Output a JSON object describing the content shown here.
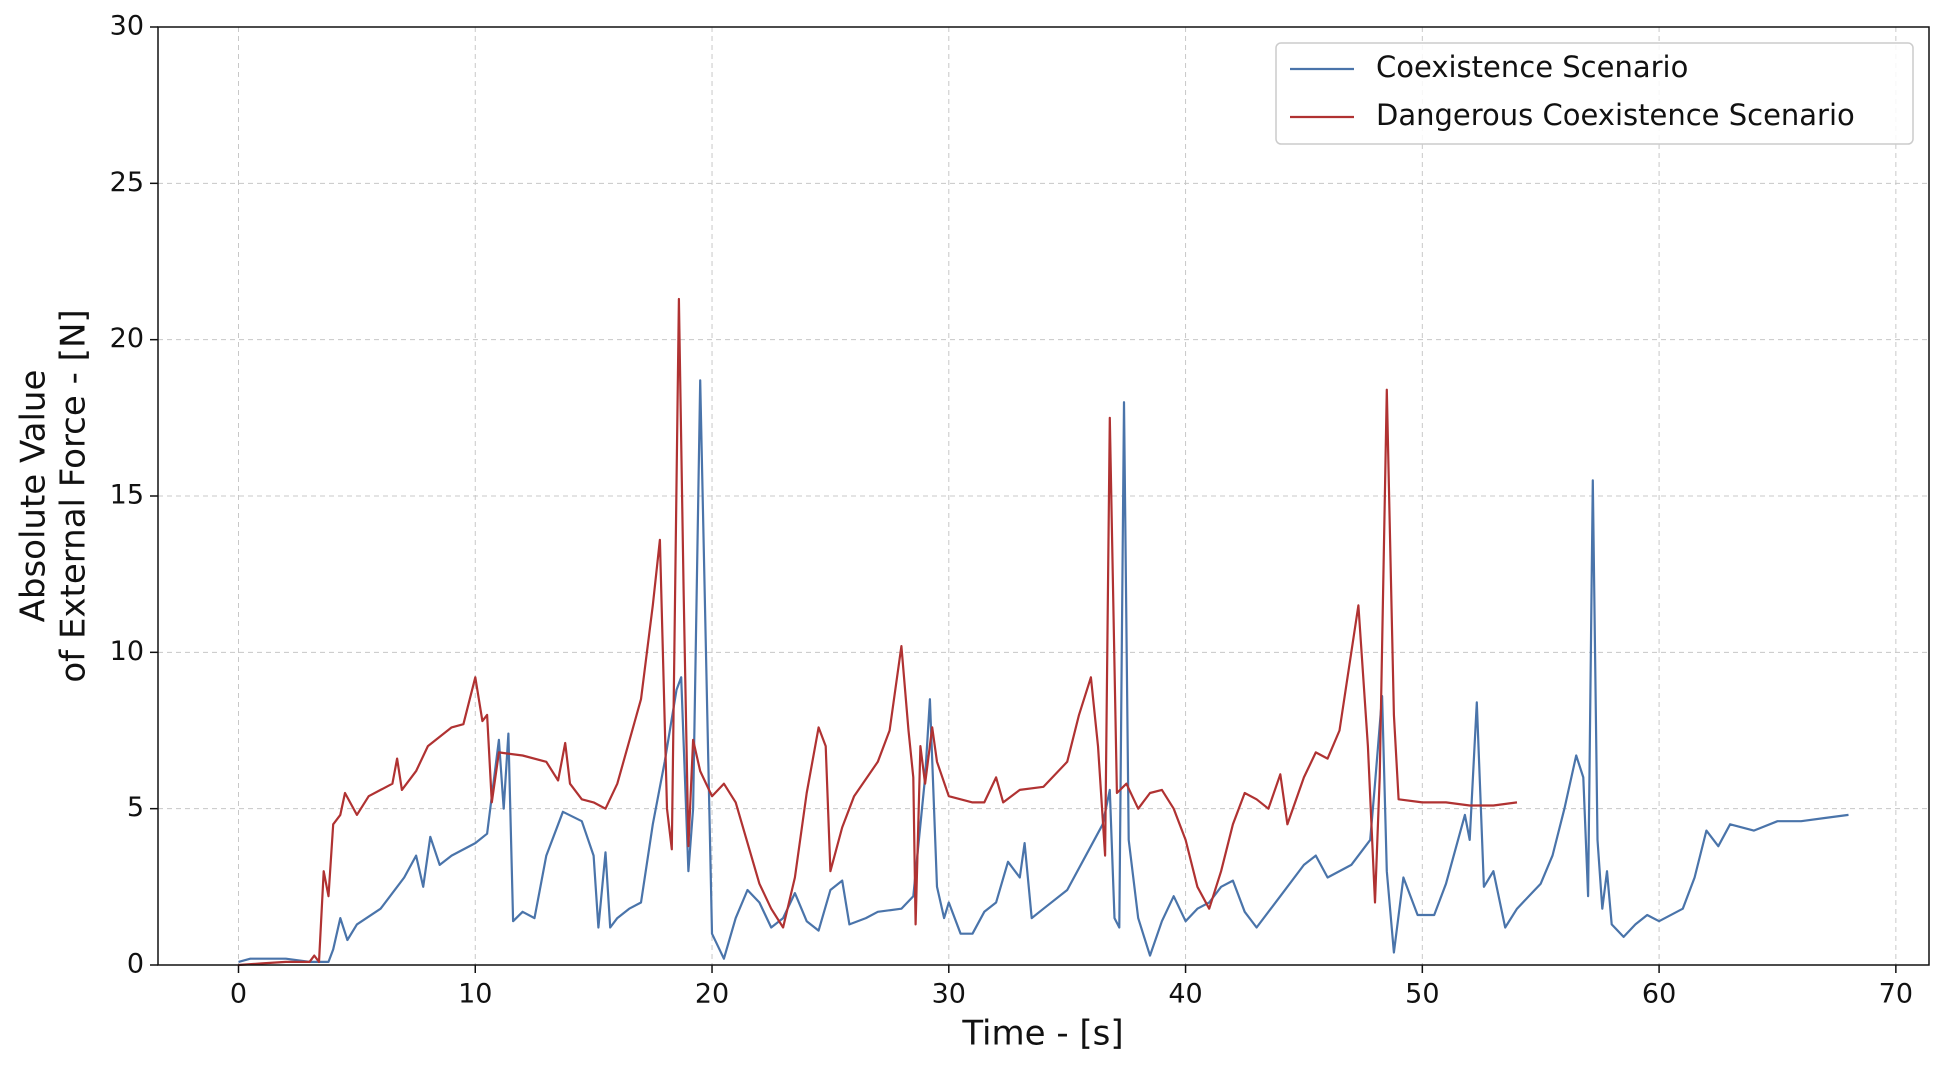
{
  "chart_data": {
    "type": "line",
    "xlabel": "Time - [s]",
    "ylabel": [
      "Absolute Value",
      "of External Force - [N]"
    ],
    "xlim": [
      -3.4,
      71.4
    ],
    "ylim": [
      0,
      30
    ],
    "xticks": [
      0,
      10,
      20,
      30,
      40,
      50,
      60,
      70
    ],
    "yticks": [
      0,
      5,
      10,
      15,
      20,
      25,
      30
    ],
    "grid": true,
    "legend": "upper right",
    "series": [
      {
        "name": "Coexistence Scenario",
        "color": "#4a74aa",
        "x": [
          0,
          0.5,
          2,
          3,
          3.8,
          4,
          4.3,
          4.6,
          5,
          6,
          7,
          7.5,
          7.8,
          8.1,
          8.5,
          9,
          10,
          10.5,
          11,
          11.2,
          11.4,
          11.6,
          12,
          12.5,
          13,
          13.7,
          14.5,
          15,
          15.2,
          15.5,
          15.7,
          16,
          16.5,
          17,
          17.5,
          18,
          18.5,
          18.7,
          19,
          19.2,
          19.5,
          19.8,
          20,
          20.5,
          21,
          21.5,
          22,
          22.5,
          23,
          23.5,
          24,
          24.5,
          25,
          25.5,
          25.8,
          26.5,
          27,
          28,
          28.5,
          29,
          29.2,
          29.5,
          29.8,
          30,
          30.5,
          31,
          31.5,
          32,
          32.5,
          33,
          33.2,
          33.5,
          34,
          35,
          36,
          36.5,
          36.8,
          37,
          37.2,
          37.4,
          37.6,
          38,
          38.5,
          39,
          39.5,
          40,
          40.5,
          41,
          41.5,
          42,
          42.5,
          43,
          44,
          45,
          45.5,
          46,
          47,
          47.8,
          48,
          48.3,
          48.5,
          48.8,
          49.2,
          49.8,
          50.5,
          51,
          51.8,
          52,
          52.3,
          52.6,
          53,
          53.5,
          54,
          55,
          55.5,
          56,
          56.5,
          56.8,
          57,
          57.2,
          57.4,
          57.6,
          57.8,
          58,
          58.5,
          59,
          59.5,
          60,
          61,
          61.5,
          62,
          62.5,
          63,
          64,
          65,
          66,
          67,
          68
        ],
        "values": [
          0.1,
          0.2,
          0.2,
          0.1,
          0.1,
          0.5,
          1.5,
          0.8,
          1.3,
          1.8,
          2.8,
          3.5,
          2.5,
          4.1,
          3.2,
          3.5,
          3.9,
          4.2,
          7.2,
          5,
          7.4,
          1.4,
          1.7,
          1.5,
          3.5,
          4.9,
          4.6,
          3.5,
          1.2,
          3.6,
          1.2,
          1.5,
          1.8,
          2,
          4.5,
          6.5,
          8.8,
          9.2,
          3,
          5,
          18.7,
          8,
          1,
          0.2,
          1.5,
          2.4,
          2,
          1.2,
          1.5,
          2.3,
          1.4,
          1.1,
          2.4,
          2.7,
          1.3,
          1.5,
          1.7,
          1.8,
          2.2,
          6,
          8.5,
          2.5,
          1.5,
          2,
          1,
          1,
          1.7,
          2,
          3.3,
          2.8,
          3.9,
          1.5,
          1.8,
          2.4,
          3.8,
          4.5,
          5.6,
          1.5,
          1.2,
          18,
          4,
          1.5,
          0.3,
          1.4,
          2.2,
          1.4,
          1.8,
          2,
          2.5,
          2.7,
          1.7,
          1.2,
          2.2,
          3.2,
          3.5,
          2.8,
          3.2,
          4,
          5.8,
          8.6,
          3,
          0.4,
          2.8,
          1.6,
          1.6,
          2.6,
          4.8,
          4,
          8.4,
          2.5,
          3,
          1.2,
          1.8,
          2.6,
          3.5,
          5,
          6.7,
          6,
          2.2,
          15.5,
          4,
          1.8,
          3,
          1.3,
          0.9,
          1.3,
          1.6,
          1.4,
          1.8,
          2.8,
          4.3,
          3.8,
          4.5,
          4.3,
          4.6,
          4.6,
          4.7,
          4.8
        ]
      },
      {
        "name": "Dangerous Coexistence Scenario",
        "color": "#b03232",
        "x": [
          0,
          1,
          2,
          3,
          3.2,
          3.4,
          3.6,
          3.8,
          4,
          4.3,
          4.5,
          5,
          5.5,
          6,
          6.5,
          6.7,
          6.9,
          7.5,
          8,
          9,
          9.5,
          10,
          10.3,
          10.5,
          10.7,
          11,
          12,
          13,
          13.5,
          13.8,
          14,
          14.5,
          15,
          15.5,
          16,
          17,
          17.5,
          17.8,
          18.1,
          18.3,
          18.6,
          18.8,
          19,
          19.2,
          19.5,
          20,
          20.5,
          21,
          22,
          22.5,
          23,
          23.5,
          24,
          24.5,
          24.8,
          25,
          25.5,
          26,
          27,
          27.5,
          28,
          28.3,
          28.5,
          28.6,
          28.8,
          29,
          29.3,
          29.5,
          30,
          31,
          31.5,
          32,
          32.3,
          33,
          34,
          35,
          35.5,
          36,
          36.3,
          36.6,
          36.8,
          37.1,
          37.5,
          38,
          38.5,
          39,
          39.5,
          40,
          40.5,
          41,
          41.5,
          42,
          42.5,
          43,
          43.5,
          44,
          44.3,
          45,
          45.5,
          46,
          46.5,
          47,
          47.3,
          47.7,
          48,
          48.2,
          48.5,
          48.8,
          49,
          50,
          51,
          52,
          53,
          54
        ],
        "values": [
          0,
          0.05,
          0.1,
          0.1,
          0.3,
          0.1,
          3,
          2.2,
          4.5,
          4.8,
          5.5,
          4.8,
          5.4,
          5.6,
          5.8,
          6.6,
          5.6,
          6.2,
          7,
          7.6,
          7.7,
          9.2,
          7.8,
          8,
          5.2,
          6.8,
          6.7,
          6.5,
          5.9,
          7.1,
          5.8,
          5.3,
          5.2,
          5,
          5.8,
          8.5,
          11.5,
          13.6,
          5,
          3.7,
          21.3,
          12,
          3.8,
          7.2,
          6.2,
          5.4,
          5.8,
          5.2,
          2.6,
          1.8,
          1.2,
          2.8,
          5.5,
          7.6,
          7,
          3,
          4.4,
          5.4,
          6.5,
          7.5,
          10.2,
          7.5,
          6,
          1.3,
          7,
          5.8,
          7.6,
          6.5,
          5.4,
          5.2,
          5.2,
          6,
          5.2,
          5.6,
          5.7,
          6.5,
          8,
          9.2,
          7,
          3.5,
          17.5,
          5.5,
          5.8,
          5,
          5.5,
          5.6,
          5,
          4,
          2.5,
          1.8,
          3,
          4.5,
          5.5,
          5.3,
          5,
          6.1,
          4.5,
          6,
          6.8,
          6.6,
          7.5,
          10,
          11.5,
          7,
          2,
          6,
          18.4,
          8,
          5.3,
          5.2,
          5.2,
          5.1,
          5.1,
          5.2
        ]
      }
    ]
  }
}
